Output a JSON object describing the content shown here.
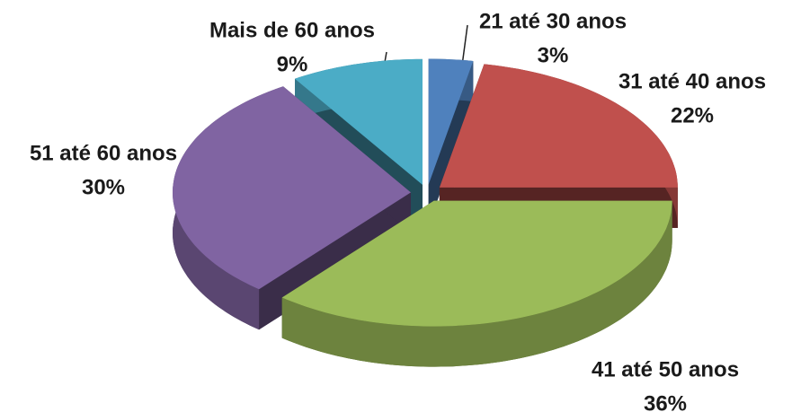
{
  "chart_data": {
    "type": "pie",
    "categories": [
      "21 até 30 anos",
      "31 até 40 anos",
      "41 até 50 anos",
      "51 até 60 anos",
      "Mais de 60 anos"
    ],
    "values": [
      3,
      22,
      36,
      30,
      9
    ],
    "value_labels": [
      "3%",
      "22%",
      "36%",
      "30%",
      "9%"
    ],
    "colors": [
      "#4f81bd",
      "#c0504d",
      "#9bbb59",
      "#8064a2",
      "#4bacc6"
    ]
  }
}
